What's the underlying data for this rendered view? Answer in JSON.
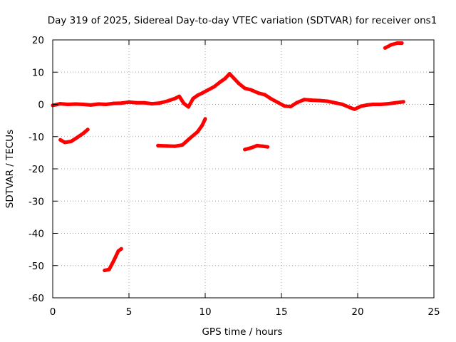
{
  "chart_data": {
    "type": "scatter",
    "title": "Day 319 of 2025, Sidereal Day-to-day VTEC variation (SDTVAR) for receiver ons1",
    "xlabel": "GPS time / hours",
    "ylabel": "SDTVAR / TECUs",
    "xlim": [
      0,
      25
    ],
    "ylim": [
      -60,
      20
    ],
    "xticks": [
      0,
      5,
      10,
      15,
      20,
      25
    ],
    "yticks": [
      -60,
      -50,
      -40,
      -30,
      -20,
      -10,
      0,
      10,
      20
    ],
    "grid": true,
    "colors": {
      "series": "#ff0000",
      "grid": "#a0a0a0",
      "axis": "#000000"
    },
    "series": [
      {
        "name": "main",
        "points": [
          [
            0,
            -0.3
          ],
          [
            0.5,
            0.2
          ],
          [
            1,
            0
          ],
          [
            1.5,
            0.1
          ],
          [
            2,
            0
          ],
          [
            2.5,
            -0.2
          ],
          [
            3,
            0.1
          ],
          [
            3.5,
            0
          ],
          [
            4,
            0.3
          ],
          [
            4.5,
            0.4
          ],
          [
            5,
            0.7
          ],
          [
            5.5,
            0.5
          ],
          [
            6,
            0.5
          ],
          [
            6.5,
            0.2
          ],
          [
            7,
            0.4
          ],
          [
            7.5,
            1
          ],
          [
            8,
            1.8
          ],
          [
            8.3,
            2.5
          ],
          [
            8.6,
            0.3
          ],
          [
            8.9,
            -0.8
          ],
          [
            9.2,
            1.8
          ],
          [
            9.5,
            2.8
          ],
          [
            9.8,
            3.5
          ],
          [
            10.2,
            4.5
          ],
          [
            10.6,
            5.5
          ],
          [
            11,
            7
          ],
          [
            11.3,
            8
          ],
          [
            11.6,
            9.5
          ],
          [
            11.9,
            8
          ],
          [
            12.2,
            6.5
          ],
          [
            12.6,
            5
          ],
          [
            13,
            4.5
          ],
          [
            13.5,
            3.5
          ],
          [
            13.9,
            3
          ],
          [
            14.3,
            1.8
          ],
          [
            14.8,
            0.5
          ],
          [
            15.2,
            -0.5
          ],
          [
            15.6,
            -0.7
          ],
          [
            16,
            0.5
          ],
          [
            16.5,
            1.5
          ],
          [
            17,
            1.3
          ],
          [
            17.5,
            1.2
          ],
          [
            18,
            1
          ],
          [
            18.5,
            0.5
          ],
          [
            19,
            0
          ],
          [
            19.5,
            -1
          ],
          [
            19.8,
            -1.5
          ],
          [
            20.2,
            -0.6
          ],
          [
            20.6,
            -0.2
          ],
          [
            21,
            0
          ],
          [
            21.5,
            0
          ],
          [
            22,
            0.2
          ],
          [
            22.5,
            0.5
          ],
          [
            23,
            0.8
          ]
        ]
      },
      {
        "name": "segment-1",
        "points": [
          [
            0.5,
            -11
          ],
          [
            0.8,
            -11.8
          ],
          [
            1.2,
            -11.5
          ],
          [
            1.6,
            -10.3
          ],
          [
            2,
            -9
          ],
          [
            2.3,
            -7.8
          ]
        ]
      },
      {
        "name": "segment-2",
        "points": [
          [
            3.4,
            -51.5
          ],
          [
            3.7,
            -51.2
          ],
          [
            4,
            -48.5
          ],
          [
            4.3,
            -45.5
          ],
          [
            4.5,
            -44.8
          ]
        ]
      },
      {
        "name": "segment-3",
        "points": [
          [
            6.9,
            -12.8
          ],
          [
            7.5,
            -12.9
          ],
          [
            8,
            -13
          ],
          [
            8.5,
            -12.6
          ],
          [
            9,
            -10.5
          ],
          [
            9.5,
            -8.5
          ],
          [
            9.8,
            -6.5
          ],
          [
            10,
            -4.5
          ]
        ]
      },
      {
        "name": "segment-4",
        "points": [
          [
            12.6,
            -14
          ],
          [
            13,
            -13.5
          ],
          [
            13.4,
            -12.8
          ],
          [
            13.8,
            -13
          ],
          [
            14.1,
            -13.2
          ]
        ]
      },
      {
        "name": "segment-5",
        "points": [
          [
            21.8,
            17.5
          ],
          [
            22.2,
            18.5
          ],
          [
            22.6,
            19
          ],
          [
            22.9,
            19
          ]
        ]
      }
    ]
  }
}
